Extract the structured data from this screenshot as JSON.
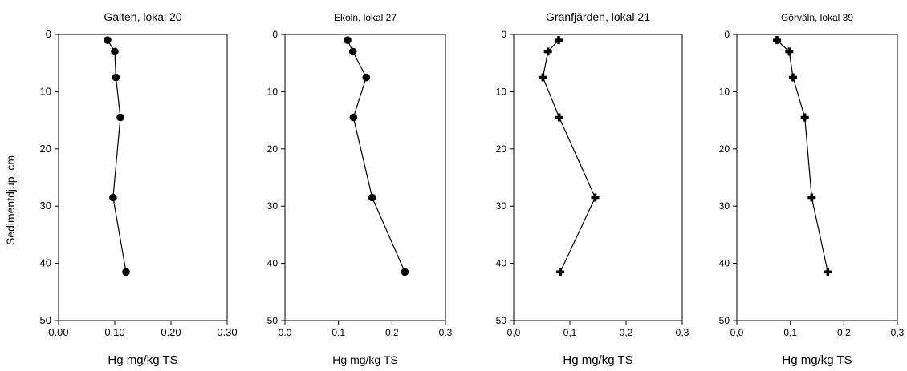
{
  "figure": {
    "ylabel": "Sedimentdjup, cm"
  },
  "chart_data": [
    {
      "type": "line",
      "title": "Galten, lokal 20",
      "xlabel": "Hg mg/kg TS",
      "ylabel": "Sedimentdjup, cm",
      "xlim": [
        0,
        0.3
      ],
      "ylim": [
        0,
        50
      ],
      "y_inverted": true,
      "xticks": [
        "0.00",
        "0.10",
        "0.20",
        "0.30"
      ],
      "yticks": [
        "0",
        "10",
        "20",
        "30",
        "40",
        "50"
      ],
      "marker": "circle",
      "x": [
        0.087,
        0.1,
        0.102,
        0.11,
        0.097,
        0.12
      ],
      "y": [
        1,
        3,
        7.5,
        14.5,
        28.5,
        41.5
      ]
    },
    {
      "type": "line",
      "title": "Ekoln, lokal 27",
      "xlabel": "Hg mg/kg TS",
      "ylabel": "",
      "xlim": [
        0,
        0.3
      ],
      "ylim": [
        0,
        50
      ],
      "y_inverted": true,
      "xticks": [
        "0.0",
        "0.1",
        "0.2",
        "0.3"
      ],
      "yticks": [
        "0",
        "10",
        "20",
        "30",
        "40",
        "50"
      ],
      "marker": "circle",
      "x": [
        0.117,
        0.127,
        0.152,
        0.128,
        0.163,
        0.224
      ],
      "y": [
        1,
        3,
        7.5,
        14.5,
        28.5,
        41.5
      ]
    },
    {
      "type": "line",
      "title": "Granfjärden, lokal 21",
      "xlabel": "Hg mg/kg TS",
      "ylabel": "",
      "xlim": [
        0,
        0.3
      ],
      "ylim": [
        0,
        50
      ],
      "y_inverted": true,
      "xticks": [
        "0,0",
        "0,1",
        "0,2",
        "0,3"
      ],
      "yticks": [
        "0",
        "10",
        "20",
        "30",
        "40",
        "50"
      ],
      "marker": "plus",
      "x": [
        0.08,
        0.061,
        0.052,
        0.081,
        0.145,
        0.083
      ],
      "y": [
        1,
        3,
        7.5,
        14.5,
        28.5,
        41.5
      ]
    },
    {
      "type": "line",
      "title": "Görväln, lokal 39",
      "xlabel": "Hg mg/kg TS",
      "ylabel": "",
      "xlim": [
        0,
        0.3
      ],
      "ylim": [
        0,
        50
      ],
      "y_inverted": true,
      "xticks": [
        "0,0",
        "0,1",
        "0,2",
        "0,3"
      ],
      "yticks": [
        "0",
        "10",
        "20",
        "30",
        "40",
        "50"
      ],
      "marker": "plus",
      "x": [
        0.075,
        0.098,
        0.105,
        0.127,
        0.14,
        0.17
      ],
      "y": [
        1,
        3,
        7.5,
        14.5,
        28.5,
        41.5
      ]
    }
  ]
}
